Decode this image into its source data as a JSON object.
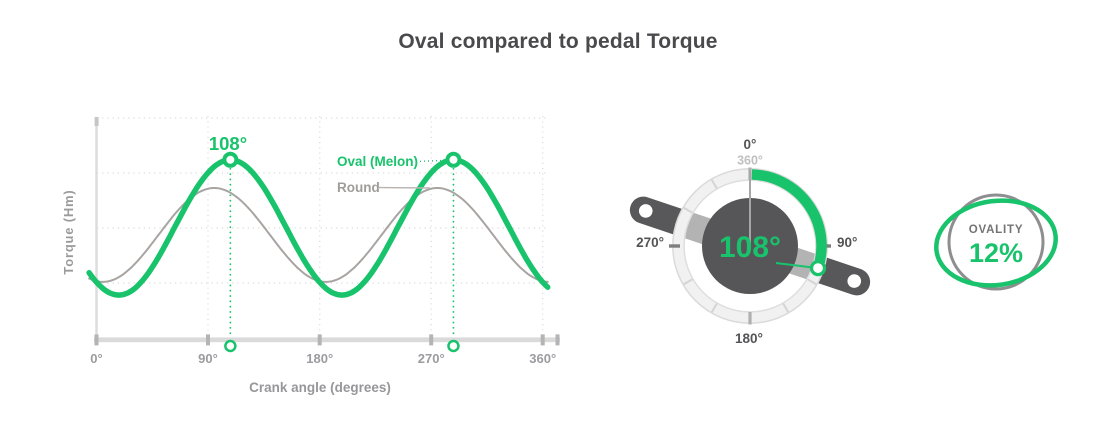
{
  "title": "Oval compared to pedal Torque",
  "colors": {
    "accent": "#18c36c",
    "dark": "#58585a",
    "round_curve": "#a8a4a2",
    "grid": "#e0e0e0",
    "axis": "#dadada",
    "tick": "#b4b4b6",
    "label_gray": "#9c9ca0"
  },
  "chart": {
    "ylabel": "Torque (Hm)",
    "xlabel": "Crank angle (degrees)",
    "x_ticks": [
      "0°",
      "90°",
      "180°",
      "270°",
      "360°"
    ],
    "peak_label": "108°",
    "legend": [
      {
        "label": "Oval (Melon)"
      },
      {
        "label": "Round"
      }
    ]
  },
  "chart_data": {
    "type": "line",
    "title": "Oval compared to pedal Torque",
    "x_label": "Crank angle (degrees)",
    "y_label": "Torque (Hm)",
    "x_unit": "degrees",
    "x_range": [
      0,
      360
    ],
    "x_tick_values": [
      0,
      90,
      180,
      270,
      360
    ],
    "y_axis_numeric_ticks": "none (relative torque, normalized 0-1)",
    "grid": "dotted",
    "legend_position": "inline-right-of-second-peak",
    "series": [
      {
        "name": "Oval (Melon)",
        "color": "#18c36c",
        "waveform": "sinusoid",
        "period_deg": 180,
        "peak_angle_deg": 108,
        "max_norm": 0.81,
        "min_norm": 0.195
      },
      {
        "name": "Round",
        "color": "#a8a4a2",
        "waveform": "sinusoid",
        "period_deg": 180,
        "peak_angle_deg": 95,
        "max_norm": 0.682,
        "min_norm": 0.255
      }
    ],
    "annotations": {
      "peak_label": "108°",
      "peak_angles_deg": [
        108,
        288
      ]
    }
  },
  "gauge": {
    "value_label": "108°",
    "crank_angle_deg": 108,
    "arc_start_deg": 0,
    "arc_end_deg": 108,
    "tick_step_deg": 30,
    "labels": {
      "top": "0°",
      "top_alt": "360°",
      "right": "90°",
      "bottom": "180°",
      "left": "270°"
    }
  },
  "ovality": {
    "label": "OVALITY",
    "value": "12%"
  }
}
